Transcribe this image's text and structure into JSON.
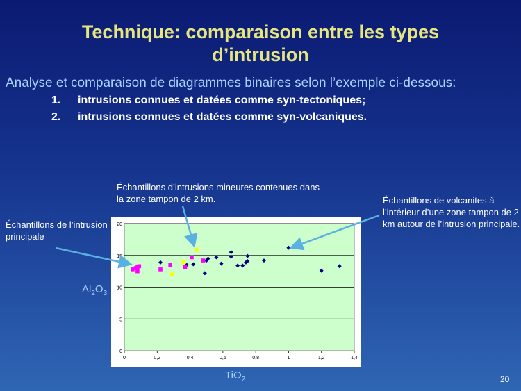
{
  "slide": {
    "title_line1": "Technique: comparaison entre les types",
    "title_line2": "d’intrusion",
    "subtitle": "Analyse et comparaison de diagrammes binaires selon l’exemple ci-dessous:",
    "items": [
      {
        "num": "1.",
        "text": "intrusions connues et datées comme syn-tectoniques;"
      },
      {
        "num": "2.",
        "text": "intrusions connues et datées comme syn-volcaniques."
      }
    ],
    "annotations": {
      "mineures": "Échantillons d’intrusions mineures contenues dans la zone tampon de 2 km.",
      "principale": "Échantillons de l’intrusion principale",
      "volcanites": "Échantillons de volcanites à l’intérieur d’une zone tampon de 2 km autour de l’intrusion principale."
    },
    "page_number": "20"
  },
  "chart_data": {
    "type": "scatter",
    "xlabel_main": "TiO",
    "xlabel_sub": "2",
    "ylabel_main": "Al",
    "ylabel_sub1": "2",
    "ylabel_mid": "O",
    "ylabel_sub2": "3",
    "xlim": [
      0,
      1.4
    ],
    "ylim": [
      0,
      20
    ],
    "x_ticks": [
      "0",
      "0,2",
      "0,4",
      "0,6",
      "0,8",
      "1",
      "1,2",
      "1,4"
    ],
    "y_ticks": [
      "0",
      "5",
      "10",
      "15",
      "20"
    ],
    "grid": true,
    "plot_background": "#ccffcc",
    "series": [
      {
        "color": "#000080",
        "marker": "diamond",
        "points": [
          [
            0.22,
            13.9
          ],
          [
            0.38,
            13.5
          ],
          [
            0.42,
            13.6
          ],
          [
            0.49,
            12.2
          ],
          [
            0.5,
            14.2
          ],
          [
            0.51,
            14.5
          ],
          [
            0.56,
            14.7
          ],
          [
            0.59,
            13.7
          ],
          [
            0.65,
            14.8
          ],
          [
            0.65,
            15.5
          ],
          [
            0.69,
            13.4
          ],
          [
            0.72,
            13.4
          ],
          [
            0.74,
            13.9
          ],
          [
            0.75,
            14.1
          ],
          [
            0.75,
            14.9
          ],
          [
            0.85,
            14.2
          ],
          [
            1.0,
            16.2
          ],
          [
            1.2,
            12.6
          ],
          [
            1.31,
            13.3
          ]
        ]
      },
      {
        "color": "#ff00ff",
        "marker": "square",
        "points": [
          [
            0.05,
            12.8
          ],
          [
            0.07,
            13.0
          ],
          [
            0.08,
            13.2
          ],
          [
            0.08,
            12.5
          ],
          [
            0.09,
            13.3
          ],
          [
            0.22,
            12.8
          ],
          [
            0.28,
            13.5
          ],
          [
            0.37,
            13.2
          ],
          [
            0.41,
            14.7
          ],
          [
            0.48,
            14.2
          ]
        ]
      },
      {
        "color": "#ffff00",
        "marker": "square",
        "points": [
          [
            0.29,
            12.0
          ],
          [
            0.36,
            13.9
          ],
          [
            0.44,
            15.9
          ]
        ]
      }
    ]
  },
  "colors": {
    "title": "#e6e680",
    "subtitle": "#a8d2ff",
    "arrow": "#5ab0e0"
  }
}
